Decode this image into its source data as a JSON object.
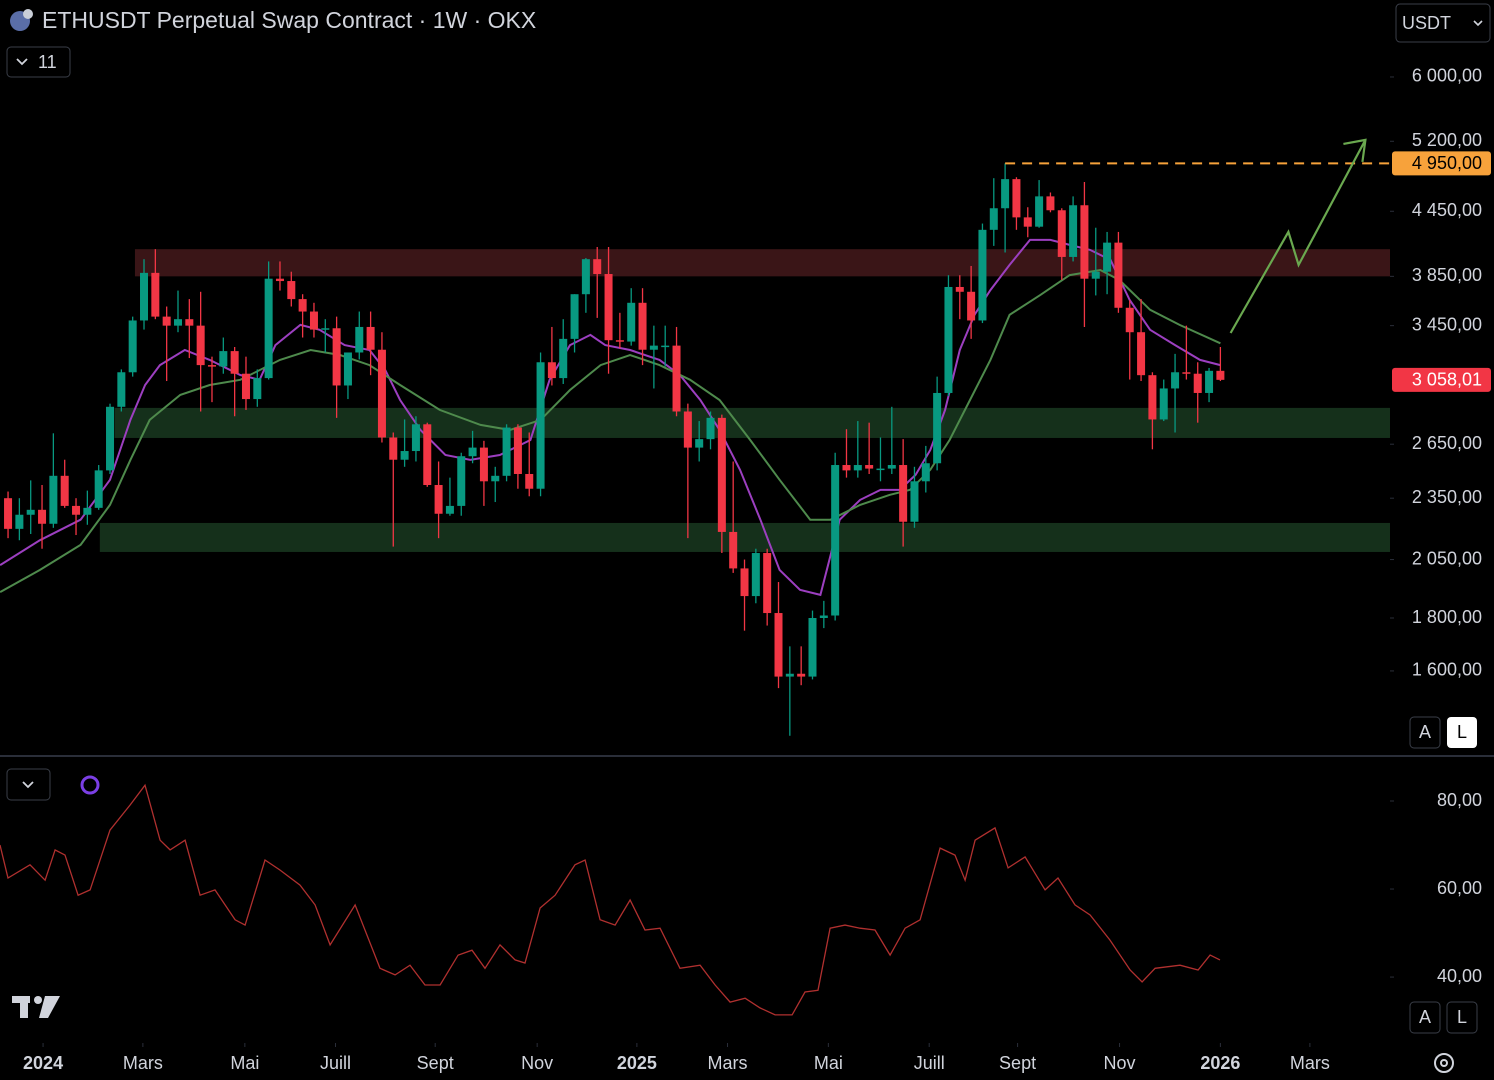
{
  "header": {
    "title": "ETHUSDT Perpetual Swap Contract · 1W · OKX",
    "indicator_count": 11,
    "currency": "USDT",
    "scale_buttons": [
      "A",
      "L"
    ],
    "pane_buttons": [
      "A",
      "L"
    ]
  },
  "chart_data": [
    {
      "type": "candlestick",
      "log_scale": true,
      "ylim": [
        1327,
        7121
      ],
      "yticks": [
        {
          "value": 1600,
          "label": "1 600,00"
        },
        {
          "value": 1800,
          "label": "1 800,00"
        },
        {
          "value": 2050,
          "label": "2 050,00"
        },
        {
          "value": 2350,
          "label": "2 350,00"
        },
        {
          "value": 2650,
          "label": "2 650,00"
        },
        {
          "value": 3450,
          "label": "3 450,00"
        },
        {
          "value": 3850,
          "label": "3 850,00"
        },
        {
          "value": 4450,
          "label": "4 450,00"
        },
        {
          "value": 5200,
          "label": "5 200,00"
        },
        {
          "value": 6000,
          "label": "6 000,00"
        }
      ],
      "xlim": [
        -0.71,
        121.97
      ],
      "xticks": [
        {
          "value": 3.09,
          "label": "2024"
        },
        {
          "value": 11.9,
          "label": "Mars"
        },
        {
          "value": 20.9,
          "label": "Mai"
        },
        {
          "value": 28.9,
          "label": "Juill"
        },
        {
          "value": 37.7,
          "label": "Sept"
        },
        {
          "value": 46.7,
          "label": "Nov"
        },
        {
          "value": 55.5,
          "label": "2025"
        },
        {
          "value": 63.5,
          "label": "Mars"
        },
        {
          "value": 72.4,
          "label": "Mai"
        },
        {
          "value": 81.3,
          "label": "Juill"
        },
        {
          "value": 89.1,
          "label": "Sept"
        },
        {
          "value": 98.1,
          "label": "Nov"
        },
        {
          "value": 107.0,
          "label": "2026"
        },
        {
          "value": 114.9,
          "label": "Mars"
        }
      ],
      "up_color": "#089981",
      "down_color": "#f23645",
      "candles": [
        [
          2350,
          2385,
          2150,
          2195
        ],
        [
          2195,
          2350,
          2140,
          2265
        ],
        [
          2265,
          2445,
          2170,
          2290
        ],
        [
          2290,
          2420,
          2100,
          2220
        ],
        [
          2220,
          2715,
          2200,
          2470
        ],
        [
          2470,
          2560,
          2300,
          2310
        ],
        [
          2310,
          2350,
          2165,
          2265
        ],
        [
          2265,
          2390,
          2215,
          2300
        ],
        [
          2300,
          2530,
          2290,
          2500
        ],
        [
          2500,
          2900,
          2480,
          2880
        ],
        [
          2880,
          3130,
          2850,
          3110
        ],
        [
          3110,
          3520,
          3080,
          3490
        ],
        [
          3490,
          4000,
          3420,
          3880
        ],
        [
          3880,
          4090,
          3500,
          3520
        ],
        [
          3520,
          3600,
          3050,
          3450
        ],
        [
          3450,
          3730,
          3400,
          3500
        ],
        [
          3500,
          3660,
          3210,
          3450
        ],
        [
          3450,
          3720,
          2850,
          3160
        ],
        [
          3160,
          3220,
          2910,
          3150
        ],
        [
          3150,
          3360,
          3100,
          3260
        ],
        [
          3260,
          3290,
          2820,
          3100
        ],
        [
          3100,
          3220,
          2860,
          2930
        ],
        [
          2930,
          3130,
          2880,
          3070
        ],
        [
          3070,
          3980,
          3060,
          3830
        ],
        [
          3830,
          3980,
          3730,
          3810
        ],
        [
          3810,
          3890,
          3600,
          3660
        ],
        [
          3660,
          3700,
          3360,
          3560
        ],
        [
          3560,
          3630,
          3360,
          3420
        ],
        [
          3420,
          3500,
          3250,
          3430
        ],
        [
          3430,
          3520,
          2810,
          3020
        ],
        [
          3020,
          3250,
          2930,
          3250
        ],
        [
          3250,
          3560,
          3200,
          3440
        ],
        [
          3440,
          3560,
          3090,
          3270
        ],
        [
          3270,
          3400,
          2660,
          2690
        ],
        [
          2690,
          2720,
          2110,
          2560
        ],
        [
          2560,
          2800,
          2520,
          2610
        ],
        [
          2610,
          2820,
          2550,
          2770
        ],
        [
          2770,
          2780,
          2410,
          2420
        ],
        [
          2420,
          2550,
          2150,
          2270
        ],
        [
          2270,
          2460,
          2260,
          2310
        ],
        [
          2310,
          2600,
          2260,
          2580
        ],
        [
          2580,
          2730,
          2540,
          2630
        ],
        [
          2630,
          2670,
          2310,
          2440
        ],
        [
          2440,
          2520,
          2330,
          2470
        ],
        [
          2470,
          2770,
          2440,
          2750
        ],
        [
          2750,
          2770,
          2400,
          2480
        ],
        [
          2480,
          2720,
          2360,
          2400
        ],
        [
          2400,
          3250,
          2360,
          3180
        ],
        [
          3180,
          3440,
          3020,
          3070
        ],
        [
          3070,
          3500,
          3030,
          3350
        ],
        [
          3350,
          3700,
          3250,
          3700
        ],
        [
          3700,
          4010,
          3550,
          4000
        ],
        [
          4000,
          4110,
          3510,
          3870
        ],
        [
          3870,
          4110,
          3100,
          3340
        ],
        [
          3340,
          3550,
          3280,
          3330
        ],
        [
          3330,
          3750,
          3300,
          3630
        ],
        [
          3630,
          3750,
          3160,
          3270
        ],
        [
          3270,
          3450,
          3000,
          3300
        ],
        [
          3300,
          3450,
          3150,
          3300
        ],
        [
          3300,
          3440,
          2820,
          2850
        ],
        [
          2850,
          2900,
          2150,
          2630
        ],
        [
          2630,
          2790,
          2550,
          2680
        ],
        [
          2680,
          2850,
          2620,
          2810
        ],
        [
          2810,
          2830,
          2080,
          2180
        ],
        [
          2180,
          2550,
          1990,
          2010
        ],
        [
          2010,
          2050,
          1750,
          1890
        ],
        [
          1890,
          2100,
          1860,
          2080
        ],
        [
          2080,
          2100,
          1770,
          1820
        ],
        [
          1820,
          1950,
          1540,
          1580
        ],
        [
          1580,
          1690,
          1385,
          1590
        ],
        [
          1590,
          1690,
          1550,
          1580
        ],
        [
          1580,
          1830,
          1570,
          1800
        ],
        [
          1800,
          1870,
          1760,
          1810
        ],
        [
          1810,
          2600,
          1790,
          2530
        ],
        [
          2530,
          2740,
          2460,
          2500
        ],
        [
          2500,
          2790,
          2460,
          2530
        ],
        [
          2530,
          2780,
          2480,
          2510
        ],
        [
          2510,
          2690,
          2440,
          2510
        ],
        [
          2510,
          2880,
          2480,
          2530
        ],
        [
          2530,
          2680,
          2110,
          2230
        ],
        [
          2230,
          2520,
          2200,
          2440
        ],
        [
          2440,
          2640,
          2380,
          2540
        ],
        [
          2540,
          3080,
          2500,
          2970
        ],
        [
          2970,
          3860,
          2950,
          3760
        ],
        [
          3760,
          3860,
          3500,
          3720
        ],
        [
          3720,
          3940,
          3350,
          3490
        ],
        [
          3490,
          4330,
          3470,
          4270
        ],
        [
          4270,
          4790,
          4120,
          4480
        ],
        [
          4480,
          4950,
          4060,
          4780
        ],
        [
          4780,
          4800,
          4270,
          4390
        ],
        [
          4390,
          4490,
          4200,
          4300
        ],
        [
          4300,
          4770,
          4290,
          4600
        ],
        [
          4600,
          4640,
          4440,
          4460
        ],
        [
          4460,
          4480,
          3820,
          4020
        ],
        [
          4020,
          4600,
          3980,
          4510
        ],
        [
          4510,
          4750,
          3440,
          3830
        ],
        [
          3830,
          4290,
          3690,
          3890
        ],
        [
          3890,
          4250,
          3700,
          4150
        ],
        [
          4150,
          4250,
          3550,
          3590
        ],
        [
          3590,
          3650,
          3060,
          3400
        ],
        [
          3400,
          3660,
          3050,
          3090
        ],
        [
          3090,
          3110,
          2620,
          2800
        ],
        [
          2800,
          3060,
          2790,
          3000
        ],
        [
          3000,
          3240,
          2720,
          3110
        ],
        [
          3110,
          3450,
          3060,
          3100
        ],
        [
          3100,
          3180,
          2780,
          2970
        ],
        [
          2970,
          3140,
          2910,
          3120
        ],
        [
          3120,
          3290,
          3050,
          3058.01
        ]
      ],
      "series": [
        {
          "color": "#9c3fc0",
          "x": [
            -0.7,
            2.8,
            6.4,
            9.0,
            10.8,
            12.1,
            13.4,
            15.6,
            17.8,
            20.5,
            22.2,
            23.6,
            25.8,
            27.5,
            29.7,
            31.9,
            33.3,
            34.6,
            36.4,
            38.6,
            40.8,
            43.4,
            46.1,
            47.8,
            49.6,
            51.4,
            52.7,
            54.9,
            57.5,
            59.3,
            61.1,
            62.8,
            64.6,
            66.4,
            68.1,
            69.9,
            71.7,
            73.4,
            75.2,
            77.0,
            78.7,
            80.1,
            81.4,
            82.7,
            84.0,
            85.3,
            86.7,
            88.4,
            90.2,
            92.0,
            93.7,
            95.5,
            97.3,
            99.0,
            100.8,
            103.0,
            105.2,
            107.0
          ],
          "values": [
            2025,
            2140,
            2240,
            2448,
            2797,
            3023,
            3160,
            3268,
            3197,
            3091,
            3058,
            3304,
            3456,
            3418,
            3304,
            3268,
            3125,
            2924,
            2735,
            2587,
            2559,
            2587,
            2675,
            3058,
            3304,
            3380,
            3304,
            3268,
            3197,
            3091,
            2924,
            2735,
            2503,
            2240,
            2003,
            1916,
            1895,
            2240,
            2341,
            2394,
            2394,
            2475,
            2616,
            2860,
            3268,
            3534,
            3734,
            3949,
            4175,
            4175,
            4129,
            4083,
            3994,
            3653,
            3418,
            3304,
            3197,
            3160
          ]
        },
        {
          "color": "#4e8a4c",
          "x": [
            -0.7,
            2.8,
            6.4,
            9.0,
            10.8,
            12.5,
            15.2,
            17.8,
            20.5,
            24.0,
            26.7,
            29.3,
            31.9,
            34.6,
            38.1,
            41.7,
            44.3,
            47.0,
            49.6,
            52.3,
            54.9,
            57.5,
            60.2,
            62.8,
            65.5,
            68.1,
            70.8,
            72.6,
            75.2,
            77.8,
            79.6,
            81.4,
            83.1,
            84.9,
            86.7,
            88.4,
            91.1,
            93.7,
            96.4,
            98.1,
            100.8,
            103.4,
            107.0
          ],
          "values": [
            1907,
            2003,
            2118,
            2315,
            2559,
            2797,
            2957,
            3023,
            3058,
            3197,
            3268,
            3232,
            3160,
            3023,
            2860,
            2766,
            2735,
            2797,
            2990,
            3160,
            3232,
            3160,
            3058,
            2924,
            2675,
            2448,
            2240,
            2240,
            2315,
            2367,
            2394,
            2503,
            2675,
            2924,
            3197,
            3534,
            3693,
            3861,
            3905,
            3818,
            3574,
            3456,
            3317
          ]
        }
      ],
      "zones": [
        {
          "from": 3850,
          "to": 4090,
          "x": [
            11.2,
            121.97
          ],
          "color": "#3a1517"
        },
        {
          "from": 2687,
          "to": 2873,
          "x": [
            9.4,
            121.97
          ],
          "color": "#15301b"
        },
        {
          "from": 2085,
          "to": 2224,
          "x": [
            8.1,
            121.97
          ],
          "color": "#15301b"
        }
      ],
      "price_labels": [
        {
          "value": 4950,
          "label": "4 950,00",
          "color": "#f7a23b",
          "text_color": "#000000"
        },
        {
          "value": 3058.01,
          "label": "3 058,01",
          "color": "#f23645",
          "text_color": "#ffffff"
        }
      ],
      "level_line_start": 88,
      "arrow": {
        "x": [
          107.9,
          113.0,
          113.9,
          119.8
        ],
        "values": [
          3394,
          4250,
          3949,
          5216
        ],
        "color": "#6aa84f"
      }
    },
    {
      "type": "line",
      "ylim": [
        25.7,
        90
      ],
      "xlim": [
        -0.71,
        121.97
      ],
      "yticks": [
        {
          "value": 40,
          "label": "40,00"
        },
        {
          "value": 60,
          "label": "60,00"
        },
        {
          "value": 80,
          "label": "80,00"
        }
      ],
      "series": [
        {
          "color": "#b0302f",
          "x": [
            -0.71,
            0,
            1.94,
            3.27,
            4.15,
            5.03,
            6.18,
            7.24,
            9.0,
            10.77,
            12.09,
            13.42,
            14.3,
            15.63,
            16.95,
            18.27,
            20.04,
            20.92,
            22.68,
            24.01,
            25.77,
            27.1,
            28.42,
            30.63,
            32.83,
            34.16,
            35.48,
            36.8,
            38.13,
            39.72,
            40.95,
            42.1,
            43.42,
            44.75,
            45.63,
            46.96,
            48.28,
            50.04,
            50.93,
            52.25,
            53.58,
            54.9,
            56.22,
            57.55,
            59.31,
            61.08,
            62.4,
            63.73,
            65.05,
            66.37,
            67.7,
            69.2,
            70.34,
            71.49,
            72.55,
            73.87,
            75.2,
            76.52,
            77.85,
            79.17,
            80.5,
            82.26,
            83.58,
            84.47,
            85.35,
            87.11,
            88.26,
            89.76,
            91.53,
            92.67,
            94.17,
            95.5,
            97.26,
            99.03,
            100.09,
            101.24,
            103.44,
            105.03,
            106.09,
            106.97
          ],
          "values": [
            70.0,
            62.5,
            65.5,
            62.0,
            68.9,
            67.7,
            58.6,
            59.8,
            73.4,
            79.1,
            83.6,
            71.1,
            68.9,
            71.1,
            58.6,
            59.8,
            53.0,
            51.8,
            66.6,
            64.3,
            60.9,
            56.4,
            47.3,
            56.4,
            42.0,
            40.5,
            42.7,
            38.2,
            38.2,
            45.0,
            46.1,
            42.0,
            47.3,
            43.9,
            43.2,
            55.7,
            58.6,
            65.5,
            66.6,
            53.0,
            51.8,
            57.5,
            50.7,
            51.1,
            42.0,
            42.7,
            38.2,
            34.3,
            35.2,
            33.0,
            31.4,
            31.4,
            36.6,
            37.0,
            51.1,
            51.8,
            51.1,
            50.7,
            45.0,
            51.1,
            53.0,
            69.3,
            67.7,
            62.0,
            71.1,
            73.9,
            64.8,
            67.3,
            59.8,
            62.5,
            56.4,
            54.1,
            48.4,
            41.6,
            38.9,
            42.0,
            42.7,
            41.6,
            45.0,
            43.9
          ]
        }
      ]
    }
  ]
}
